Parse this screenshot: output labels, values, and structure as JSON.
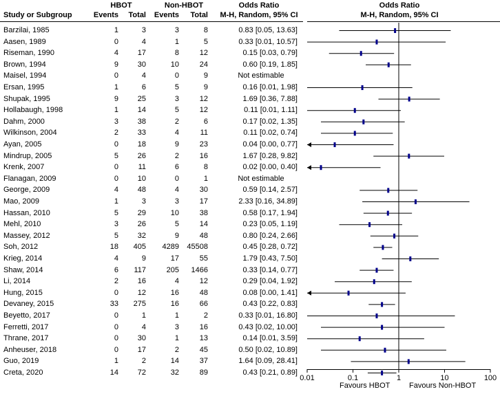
{
  "headers": {
    "group1": "HBOT",
    "group2": "Non-HBOT",
    "or_title": "Odds Ratio",
    "or_method": "M-H, Random, 95% CI",
    "plot_title": "Odds Ratio",
    "plot_method": "M-H, Random, 95% CI",
    "study": "Study or Subgroup",
    "events1": "Events",
    "total1": "Total",
    "events2": "Events",
    "total2": "Total"
  },
  "footer": {
    "favours_left": "Favours HBOT",
    "favours_right": "Favours Non-HBOT"
  },
  "colors": {
    "marker": "#00008b",
    "line": "#000000"
  },
  "chart_data": {
    "type": "forest",
    "x_scale": "log",
    "xlim": [
      0.01,
      100
    ],
    "x_ticks": [
      "0.01",
      "0.1",
      "1",
      "10",
      "100"
    ],
    "null_line": 1,
    "studies": [
      {
        "name": "Barzilai, 1985",
        "e1": 1,
        "t1": 3,
        "e2": 3,
        "t2": 8,
        "ci_text": "0.83 [0.05, 13.63]",
        "or": 0.83,
        "lo": 0.05,
        "hi": 13.63
      },
      {
        "name": "Aasen, 1989",
        "e1": 0,
        "t1": 4,
        "e2": 1,
        "t2": 5,
        "ci_text": "0.33 [0.01, 10.57]",
        "or": 0.33,
        "lo": 0.01,
        "hi": 10.57
      },
      {
        "name": "Riseman, 1990",
        "e1": 4,
        "t1": 17,
        "e2": 8,
        "t2": 12,
        "ci_text": "0.15 [0.03, 0.79]",
        "or": 0.15,
        "lo": 0.03,
        "hi": 0.79
      },
      {
        "name": "Brown, 1994",
        "e1": 9,
        "t1": 30,
        "e2": 10,
        "t2": 24,
        "ci_text": "0.60 [0.19, 1.85]",
        "or": 0.6,
        "lo": 0.19,
        "hi": 1.85
      },
      {
        "name": "Maisel, 1994",
        "e1": 0,
        "t1": 4,
        "e2": 0,
        "t2": 9,
        "ci_text": "Not estimable",
        "or": null,
        "lo": null,
        "hi": null
      },
      {
        "name": "Ersan, 1995",
        "e1": 1,
        "t1": 6,
        "e2": 5,
        "t2": 9,
        "ci_text": "0.16 [0.01, 1.98]",
        "or": 0.16,
        "lo": 0.01,
        "hi": 1.98
      },
      {
        "name": "Shupak, 1995",
        "e1": 9,
        "t1": 25,
        "e2": 3,
        "t2": 12,
        "ci_text": "1.69 [0.36, 7.88]",
        "or": 1.69,
        "lo": 0.36,
        "hi": 7.88
      },
      {
        "name": "Hollabaugh, 1998",
        "e1": 1,
        "t1": 14,
        "e2": 5,
        "t2": 12,
        "ci_text": "0.11 [0.01, 1.11]",
        "or": 0.11,
        "lo": 0.01,
        "hi": 1.11
      },
      {
        "name": "Dahm, 2000",
        "e1": 3,
        "t1": 38,
        "e2": 2,
        "t2": 6,
        "ci_text": "0.17 [0.02, 1.35]",
        "or": 0.17,
        "lo": 0.02,
        "hi": 1.35
      },
      {
        "name": "Wilkinson, 2004",
        "e1": 2,
        "t1": 33,
        "e2": 4,
        "t2": 11,
        "ci_text": "0.11 [0.02, 0.74]",
        "or": 0.11,
        "lo": 0.02,
        "hi": 0.74
      },
      {
        "name": "Ayan, 2005",
        "e1": 0,
        "t1": 18,
        "e2": 9,
        "t2": 23,
        "ci_text": "0.04 [0.00, 0.77]",
        "or": 0.04,
        "lo": 0.0,
        "hi": 0.77
      },
      {
        "name": "Mindrup, 2005",
        "e1": 5,
        "t1": 26,
        "e2": 2,
        "t2": 16,
        "ci_text": "1.67 [0.28, 9.82]",
        "or": 1.67,
        "lo": 0.28,
        "hi": 9.82
      },
      {
        "name": "Krenk, 2007",
        "e1": 0,
        "t1": 11,
        "e2": 6,
        "t2": 8,
        "ci_text": "0.02 [0.00, 0.40]",
        "or": 0.02,
        "lo": 0.0,
        "hi": 0.4
      },
      {
        "name": "Flanagan, 2009",
        "e1": 0,
        "t1": 10,
        "e2": 0,
        "t2": 1,
        "ci_text": "Not estimable",
        "or": null,
        "lo": null,
        "hi": null
      },
      {
        "name": "George, 2009",
        "e1": 4,
        "t1": 48,
        "e2": 4,
        "t2": 30,
        "ci_text": "0.59 [0.14, 2.57]",
        "or": 0.59,
        "lo": 0.14,
        "hi": 2.57
      },
      {
        "name": "Mao, 2009",
        "e1": 1,
        "t1": 3,
        "e2": 3,
        "t2": 17,
        "ci_text": "2.33 [0.16, 34.89]",
        "or": 2.33,
        "lo": 0.16,
        "hi": 34.89
      },
      {
        "name": "Hassan, 2010",
        "e1": 5,
        "t1": 29,
        "e2": 10,
        "t2": 38,
        "ci_text": "0.58 [0.17, 1.94]",
        "or": 0.58,
        "lo": 0.17,
        "hi": 1.94
      },
      {
        "name": "Mehl, 2010",
        "e1": 3,
        "t1": 26,
        "e2": 5,
        "t2": 14,
        "ci_text": "0.23 [0.05, 1.19]",
        "or": 0.23,
        "lo": 0.05,
        "hi": 1.19
      },
      {
        "name": "Massey, 2012",
        "e1": 5,
        "t1": 32,
        "e2": 9,
        "t2": 48,
        "ci_text": "0.80 [0.24, 2.66]",
        "or": 0.8,
        "lo": 0.24,
        "hi": 2.66
      },
      {
        "name": "Soh, 2012",
        "e1": 18,
        "t1": 405,
        "e2": 4289,
        "t2": 45508,
        "ci_text": "0.45 [0.28, 0.72]",
        "or": 0.45,
        "lo": 0.28,
        "hi": 0.72
      },
      {
        "name": "Krieg, 2014",
        "e1": 4,
        "t1": 9,
        "e2": 17,
        "t2": 55,
        "ci_text": "1.79 [0.43, 7.50]",
        "or": 1.79,
        "lo": 0.43,
        "hi": 7.5
      },
      {
        "name": "Shaw, 2014",
        "e1": 6,
        "t1": 117,
        "e2": 205,
        "t2": 1466,
        "ci_text": "0.33 [0.14, 0.77]",
        "or": 0.33,
        "lo": 0.14,
        "hi": 0.77
      },
      {
        "name": "Li, 2014",
        "e1": 2,
        "t1": 16,
        "e2": 4,
        "t2": 12,
        "ci_text": "0.29 [0.04, 1.92]",
        "or": 0.29,
        "lo": 0.04,
        "hi": 1.92
      },
      {
        "name": "Hung, 2015",
        "e1": 0,
        "t1": 12,
        "e2": 16,
        "t2": 48,
        "ci_text": "0.08 [0.00, 1.41]",
        "or": 0.08,
        "lo": 0.0,
        "hi": 1.41
      },
      {
        "name": "Devaney, 2015",
        "e1": 33,
        "t1": 275,
        "e2": 16,
        "t2": 66,
        "ci_text": "0.43 [0.22, 0.83]",
        "or": 0.43,
        "lo": 0.22,
        "hi": 0.83
      },
      {
        "name": "Beyetto, 2017",
        "e1": 0,
        "t1": 1,
        "e2": 1,
        "t2": 2,
        "ci_text": "0.33 [0.01, 16.80]",
        "or": 0.33,
        "lo": 0.01,
        "hi": 16.8
      },
      {
        "name": "Ferretti, 2017",
        "e1": 0,
        "t1": 4,
        "e2": 3,
        "t2": 16,
        "ci_text": "0.43 [0.02, 10.00]",
        "or": 0.43,
        "lo": 0.02,
        "hi": 10.0
      },
      {
        "name": "Thrane, 2017",
        "e1": 0,
        "t1": 30,
        "e2": 1,
        "t2": 13,
        "ci_text": "0.14 [0.01, 3.59]",
        "or": 0.14,
        "lo": 0.01,
        "hi": 3.59
      },
      {
        "name": "Anheuser, 2018",
        "e1": 0,
        "t1": 17,
        "e2": 2,
        "t2": 45,
        "ci_text": "0.50 [0.02, 10.89]",
        "or": 0.5,
        "lo": 0.02,
        "hi": 10.89
      },
      {
        "name": "Guo, 2019",
        "e1": 1,
        "t1": 2,
        "e2": 14,
        "t2": 37,
        "ci_text": "1.64 [0.09, 28.41]",
        "or": 1.64,
        "lo": 0.09,
        "hi": 28.41
      },
      {
        "name": "Creta, 2020",
        "e1": 14,
        "t1": 72,
        "e2": 32,
        "t2": 89,
        "ci_text": "0.43 [0.21, 0.89]",
        "or": 0.43,
        "lo": 0.21,
        "hi": 0.89
      }
    ]
  }
}
